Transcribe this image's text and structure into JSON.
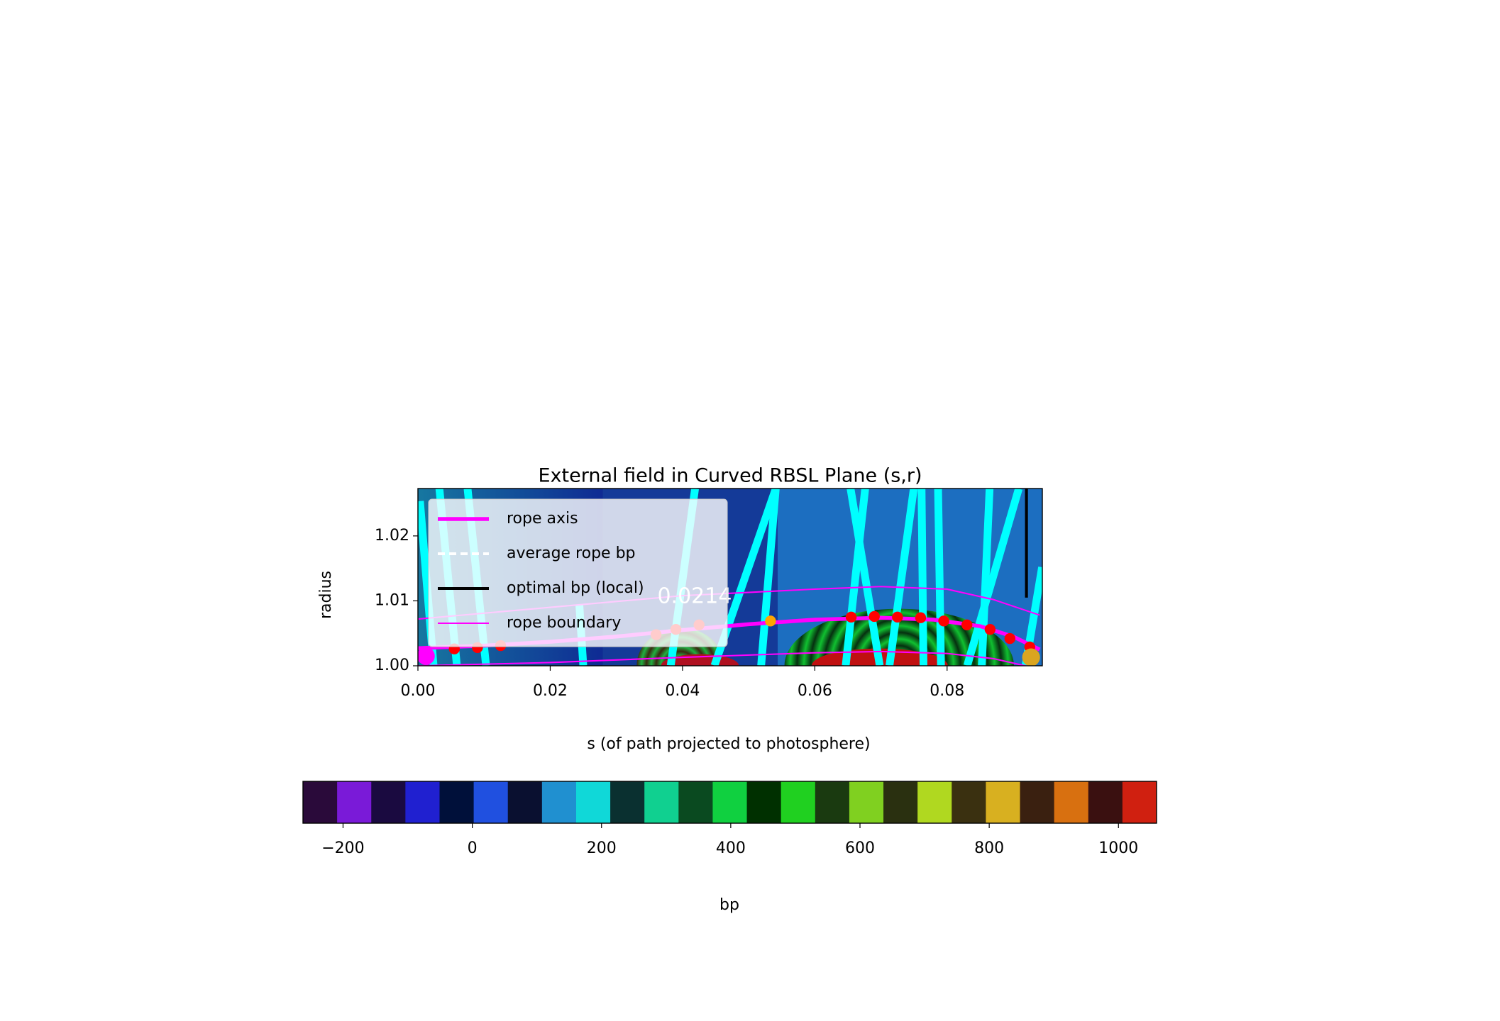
{
  "chart_data": {
    "type": "line",
    "title": "External field in Curved RBSL Plane (s,r)",
    "xlabel": "s (of path projected to photosphere)",
    "ylabel": "radius",
    "xlim": [
      0,
      0.0944
    ],
    "ylim": [
      1.0,
      1.0273
    ],
    "xticks": [
      {
        "value": 0,
        "label": "0.00"
      },
      {
        "value": 0.02,
        "label": "0.02"
      },
      {
        "value": 0.04,
        "label": "0.04"
      },
      {
        "value": 0.06,
        "label": "0.06"
      },
      {
        "value": 0.08,
        "label": "0.08"
      }
    ],
    "yticks": [
      {
        "value": 1.0,
        "label": "1.00"
      },
      {
        "value": 1.01,
        "label": "1.01"
      },
      {
        "value": 1.02,
        "label": "1.02"
      }
    ],
    "legend": "upper left",
    "series": [
      {
        "name": "rope axis",
        "color": "#ff00ff",
        "width": 4,
        "x": [
          0,
          0.01,
          0.02,
          0.03,
          0.04,
          0.05,
          0.06,
          0.07,
          0.078,
          0.085,
          0.09,
          0.094
        ],
        "values": [
          1.0027,
          1.0031,
          1.0037,
          1.0045,
          1.0055,
          1.0064,
          1.0071,
          1.0074,
          1.0071,
          1.0061,
          1.0045,
          1.0025
        ]
      },
      {
        "name": "average rope bp",
        "color": "#ffffff",
        "width": 3,
        "dash": true,
        "x": [],
        "values": []
      },
      {
        "name": "optimal bp (local)",
        "color": "#000000",
        "width": 3,
        "x": [
          0.092,
          0.092
        ],
        "values": [
          1.0105,
          1.0273
        ]
      },
      {
        "name": "rope boundary",
        "color": "#ff00ff",
        "width": 1.5,
        "x": [
          0,
          0.02,
          0.04,
          0.06,
          0.07,
          0.08,
          0.087,
          0.094,
          null,
          0.0,
          0.02,
          0.04,
          0.06,
          0.07,
          0.08,
          0.087,
          0.094
        ],
        "values": [
          1.0072,
          1.009,
          1.0108,
          1.0118,
          1.0122,
          1.0118,
          1.0102,
          1.0078,
          null,
          1.0,
          1.0005,
          1.0013,
          1.002,
          1.0022,
          1.0019,
          1.0011,
          0.9995
        ]
      }
    ],
    "markers": [
      {
        "color": "#ff0000",
        "size": 11,
        "x": [
          0.0055,
          0.009,
          0.0125,
          0.036,
          0.039,
          0.0425,
          0.0655,
          0.069,
          0.0725,
          0.076,
          0.0795,
          0.083,
          0.0865,
          0.0895,
          0.0925
        ],
        "values": [
          1.0026,
          1.0028,
          1.0031,
          1.0048,
          1.0056,
          1.0063,
          1.0075,
          1.0076,
          1.0075,
          1.0074,
          1.0069,
          1.0063,
          1.0056,
          1.0042,
          1.0029
        ]
      },
      {
        "color": "#ffa500",
        "size": 11,
        "x": [
          0.0533
        ],
        "values": [
          1.0069
        ]
      },
      {
        "color": "#ff00ff",
        "size": 18,
        "x": [
          0.0012
        ],
        "values": [
          1.0015
        ]
      },
      {
        "color": "#daa520",
        "size": 18,
        "x": [
          0.0927
        ],
        "values": [
          1.0013
        ]
      }
    ],
    "annotations": [
      {
        "text": "0.0214",
        "x": 0.0362,
        "y": 1.0106
      }
    ],
    "colorbar": {
      "label": "bp",
      "lim": [
        -262,
        1059
      ],
      "ticks": [
        {
          "value": -200,
          "label": "−200"
        },
        0,
        200,
        400,
        600,
        800,
        1000
      ],
      "colors": [
        "#2a0a3a",
        "#7a1ad8",
        "#1a0a40",
        "#2020d0",
        "#00103a",
        "#2050e0",
        "#0a1030",
        "#2090d0",
        "#10d8d8",
        "#0a3030",
        "#10d090",
        "#0a4a20",
        "#10d040",
        "#003000",
        "#20d020",
        "#1a3a10",
        "#80d020",
        "#2a3010",
        "#b0d820",
        "#3a3010",
        "#d8b020",
        "#3a2010",
        "#d87010",
        "#3a1010",
        "#d02010"
      ]
    }
  }
}
